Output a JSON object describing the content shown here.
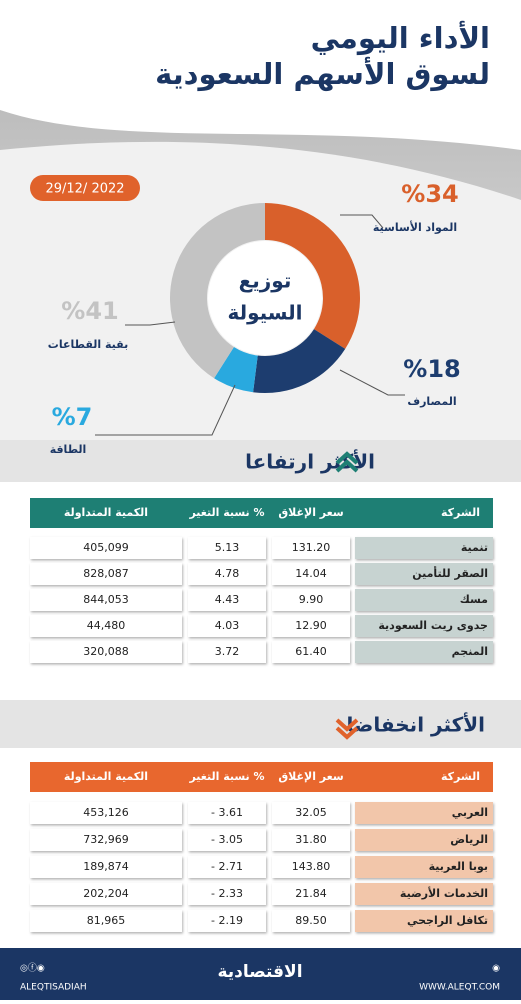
{
  "header": {
    "title_lines": [
      "الأداء اليومي",
      "لسوق الأسهم السعودية"
    ],
    "date": "29/12/ 2022"
  },
  "chart_data": {
    "type": "pie",
    "donut": true,
    "center_lines": [
      "توزيع",
      "السيولة"
    ],
    "categories": [
      "المواد الأساسية",
      "المصارف",
      "الطاقة",
      "بقية القطاعات"
    ],
    "values": [
      34,
      18,
      7,
      41
    ],
    "value_labels": [
      "%34",
      "%18",
      "%7",
      "%41"
    ],
    "colors": [
      "#d9602b",
      "#1d3d6f",
      "#29a9df",
      "#c3c3c3"
    ]
  },
  "up": {
    "title": "الأكثر ارتفاعا",
    "headers": [
      "الشركة",
      "سعر الإغلاق",
      "نسبة التغير %",
      "الكمية المتداولة"
    ],
    "rows": [
      [
        "تنمية",
        "131.20",
        "5.13",
        "405,099"
      ],
      [
        "الصقر للتأمين",
        "14.04",
        "4.78",
        "828,087"
      ],
      [
        "مسك",
        "9.90",
        "4.43",
        "844,053"
      ],
      [
        "جدوى ريت السعودية",
        "12.90",
        "4.03",
        "44,480"
      ],
      [
        "المنجم",
        "61.40",
        "3.72",
        "320,088"
      ]
    ]
  },
  "down": {
    "title": "الأكثر انخفاضا",
    "headers": [
      "الشركة",
      "سعر الإغلاق",
      "نسبة التغير %",
      "الكمية المتداولة"
    ],
    "rows": [
      [
        "العربي",
        "32.05",
        "- 3.61",
        "453,126"
      ],
      [
        "الرياض",
        "31.80",
        "- 3.05",
        "732,969"
      ],
      [
        "بوبا العربية",
        "143.80",
        "- 2.71",
        "189,874"
      ],
      [
        "الخدمات الأرضية",
        "21.84",
        "- 2.33",
        "202,204"
      ],
      [
        "تكافل الراجحي",
        "89.50",
        "- 2.19",
        "81,965"
      ]
    ]
  },
  "footer": {
    "handle": "ALEQTISADIAH",
    "logo": "الاقتصادية",
    "site": "WWW.ALEQT.COM"
  }
}
